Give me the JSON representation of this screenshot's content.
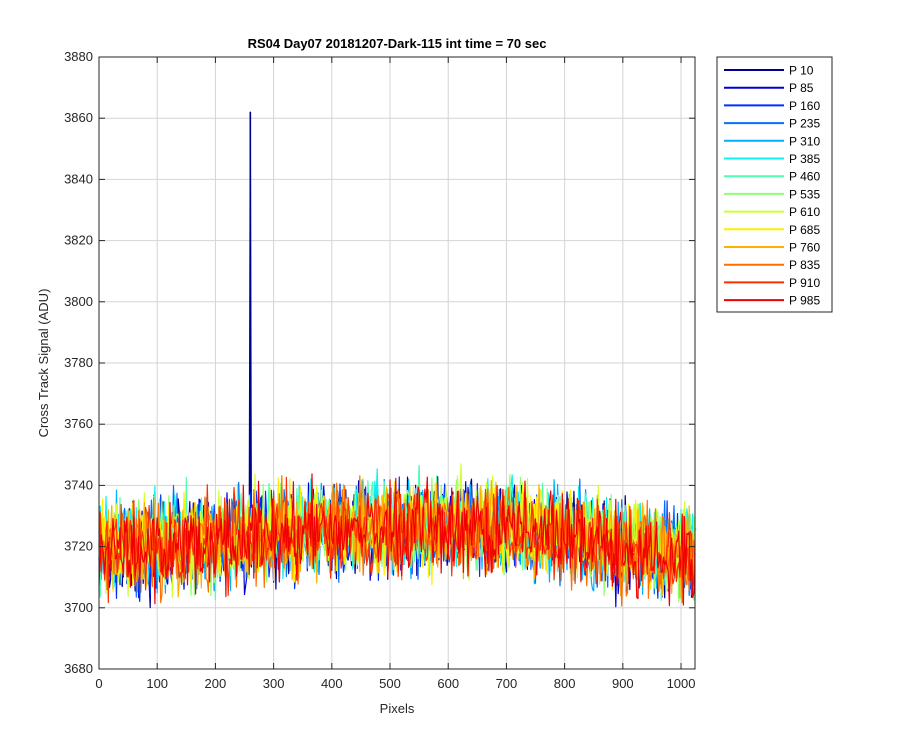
{
  "chart_data": {
    "type": "line",
    "title": "RS04 Day07 20181207-Dark-115 int time = 70 sec",
    "xlabel": "Pixels",
    "ylabel": "Cross Track Signal (ADU)",
    "xlim": [
      0,
      1024
    ],
    "ylim": [
      3680,
      3880
    ],
    "xticks": [
      "0",
      "100",
      "200",
      "300",
      "400",
      "500",
      "600",
      "700",
      "800",
      "900",
      "1000"
    ],
    "yticks": [
      "3680",
      "3700",
      "3720",
      "3740",
      "3760",
      "3780",
      "3800",
      "3820",
      "3840",
      "3860",
      "3880"
    ],
    "grid": true,
    "legend_position": "outside-top-right",
    "x": [
      0,
      50,
      100,
      150,
      200,
      250,
      300,
      350,
      400,
      450,
      500,
      550,
      600,
      650,
      700,
      750,
      800,
      850,
      900,
      950,
      1023
    ],
    "series": [
      {
        "name": "P 10",
        "color": "#00008f",
        "values": [
          3720,
          3719,
          3720,
          3721,
          3722,
          3723,
          3724,
          3725,
          3726,
          3726,
          3726,
          3727,
          3727,
          3727,
          3727,
          3726,
          3724,
          3722,
          3720,
          3719,
          3718
        ],
        "spike": {
          "x": 260,
          "y": 3862
        }
      },
      {
        "name": "P 85",
        "color": "#0000d4",
        "values": [
          3718,
          3719,
          3720,
          3721,
          3722,
          3723,
          3724,
          3725,
          3725,
          3726,
          3726,
          3726,
          3727,
          3726,
          3726,
          3725,
          3723,
          3721,
          3719,
          3718,
          3717
        ]
      },
      {
        "name": "P 160",
        "color": "#0030ff",
        "values": [
          3719,
          3719,
          3720,
          3721,
          3722,
          3723,
          3724,
          3725,
          3725,
          3726,
          3726,
          3727,
          3727,
          3726,
          3726,
          3725,
          3723,
          3721,
          3719,
          3718,
          3718
        ]
      },
      {
        "name": "P 235",
        "color": "#0070ff",
        "values": [
          3720,
          3720,
          3721,
          3722,
          3722,
          3723,
          3724,
          3725,
          3726,
          3726,
          3727,
          3727,
          3727,
          3727,
          3726,
          3725,
          3723,
          3722,
          3720,
          3719,
          3718
        ]
      },
      {
        "name": "P 310",
        "color": "#00b0ff",
        "values": [
          3721,
          3720,
          3721,
          3722,
          3723,
          3724,
          3725,
          3726,
          3727,
          3727,
          3727,
          3728,
          3728,
          3727,
          3727,
          3725,
          3724,
          3722,
          3720,
          3719,
          3719
        ]
      },
      {
        "name": "P 385",
        "color": "#10f0ef",
        "values": [
          3721,
          3721,
          3721,
          3722,
          3723,
          3724,
          3725,
          3726,
          3727,
          3727,
          3727,
          3728,
          3728,
          3728,
          3727,
          3726,
          3724,
          3722,
          3721,
          3720,
          3719
        ]
      },
      {
        "name": "P 460",
        "color": "#50ffaf",
        "values": [
          3720,
          3720,
          3721,
          3722,
          3723,
          3724,
          3725,
          3725,
          3726,
          3727,
          3727,
          3727,
          3728,
          3728,
          3727,
          3725,
          3724,
          3722,
          3720,
          3719,
          3718
        ]
      },
      {
        "name": "P 535",
        "color": "#90ff6f",
        "values": [
          3719,
          3719,
          3720,
          3721,
          3722,
          3723,
          3724,
          3725,
          3726,
          3726,
          3727,
          3727,
          3727,
          3727,
          3726,
          3725,
          3723,
          3721,
          3720,
          3719,
          3718
        ]
      },
      {
        "name": "P 610",
        "color": "#cfff30",
        "values": [
          3720,
          3720,
          3721,
          3722,
          3723,
          3724,
          3725,
          3726,
          3726,
          3727,
          3727,
          3728,
          3728,
          3728,
          3727,
          3726,
          3724,
          3722,
          3721,
          3720,
          3719
        ]
      },
      {
        "name": "P 685",
        "color": "#ffef00",
        "values": [
          3720,
          3719,
          3720,
          3721,
          3722,
          3723,
          3724,
          3725,
          3726,
          3726,
          3726,
          3727,
          3727,
          3727,
          3726,
          3725,
          3723,
          3721,
          3720,
          3719,
          3718
        ]
      },
      {
        "name": "P 760",
        "color": "#ffb000",
        "values": [
          3719,
          3719,
          3720,
          3721,
          3722,
          3723,
          3724,
          3725,
          3725,
          3726,
          3726,
          3726,
          3727,
          3726,
          3726,
          3724,
          3723,
          3721,
          3719,
          3718,
          3717
        ]
      },
      {
        "name": "P 835",
        "color": "#ff7000",
        "values": [
          3718,
          3718,
          3719,
          3720,
          3721,
          3722,
          3723,
          3724,
          3725,
          3725,
          3726,
          3726,
          3726,
          3726,
          3725,
          3724,
          3722,
          3720,
          3718,
          3717,
          3716
        ]
      },
      {
        "name": "P 910",
        "color": "#ff3000",
        "values": [
          3719,
          3719,
          3720,
          3721,
          3722,
          3723,
          3724,
          3725,
          3725,
          3726,
          3726,
          3726,
          3727,
          3726,
          3726,
          3724,
          3722,
          3721,
          3719,
          3718,
          3717
        ]
      },
      {
        "name": "P 985",
        "color": "#f00000",
        "values": [
          3718,
          3718,
          3719,
          3720,
          3721,
          3722,
          3723,
          3724,
          3725,
          3725,
          3725,
          3726,
          3726,
          3726,
          3725,
          3724,
          3722,
          3720,
          3718,
          3717,
          3716
        ]
      }
    ],
    "noise_amplitude_adu": 12
  }
}
